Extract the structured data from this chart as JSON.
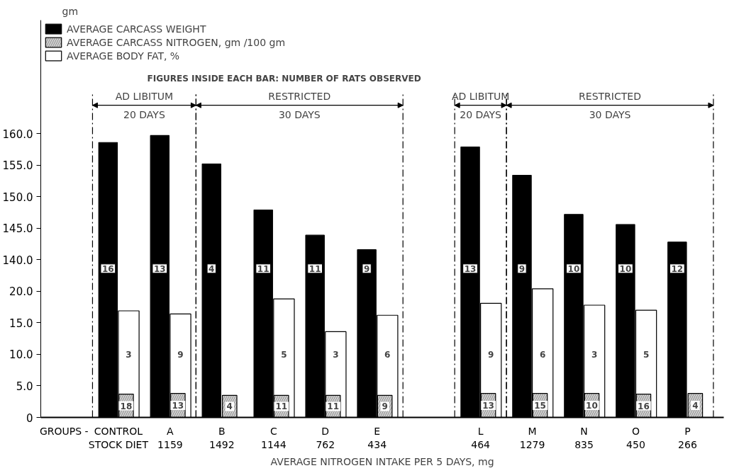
{
  "chart_data": {
    "type": "bar",
    "xlabel": "AVERAGE NITROGEN INTAKE PER 5 DAYS, mg",
    "ylabel": "gm",
    "categories": [
      "CONTROL\nSTOCK DIET",
      "A\n1159",
      "B\n1492",
      "C\n1144",
      "D\n762",
      "E\n434",
      null,
      "L\n464",
      "M\n1279",
      "N\n835",
      "O\n450",
      "P\n266"
    ],
    "series": [
      {
        "name": "AVERAGE CARCASS WEIGHT",
        "color": "#000000",
        "axis": "y2",
        "values": [
          158.6,
          159.7,
          155.2,
          147.9,
          143.9,
          141.6,
          null,
          157.9,
          153.4,
          147.2,
          145.6,
          142.8
        ]
      },
      {
        "name": "AVERAGE CARCASS NITROGEN, gm /100 gm",
        "color": "#d0d0d0",
        "values": [
          3.7,
          3.8,
          3.5,
          3.5,
          3.5,
          3.5,
          null,
          3.8,
          3.8,
          3.8,
          3.7,
          3.8
        ]
      },
      {
        "name": "AVERAGE BODY FAT, %",
        "color": "#ffffff",
        "values": [
          16.9,
          16.4,
          null,
          18.8,
          13.6,
          16.2,
          null,
          18.1,
          20.4,
          17.8,
          17.0,
          null
        ]
      }
    ],
    "ylim": [
      0,
      63
    ],
    "yticks": [
      0,
      {
        "value": 5,
        "label": "5.0"
      },
      {
        "value": 10,
        "label": "10.0"
      },
      {
        "value": 15,
        "label": "15.0"
      },
      {
        "value": 20,
        "label": "20.0"
      }
    ],
    "y2lim": [
      115,
      178
    ],
    "y2ticks": [
      {
        "value": 140,
        "label": "140.0"
      },
      {
        "value": 145,
        "label": "145.0"
      },
      {
        "value": 150,
        "label": "150.0"
      },
      {
        "value": 155,
        "label": "155.0"
      },
      {
        "value": 160,
        "label": "160.0"
      }
    ],
    "annotations": [
      "FIGURES INSIDE EACH BAR: NUMBER OF RATS OBSERVED",
      "AD LIBITUM",
      "20 DAYS",
      "RESTRICTED",
      "30 DAYS",
      "AD LIBITUM",
      "20 DAYS",
      "RESTRICTED",
      "30 DAYS",
      "GROUPS -",
      "16",
      "13",
      "4",
      "11",
      "11",
      "9",
      "13",
      "9",
      "10",
      "10",
      "12",
      "18",
      "13",
      "4",
      "11",
      "11",
      "9",
      "13",
      "15",
      "10",
      "16",
      "4",
      "3",
      "9",
      "5",
      "3",
      "6",
      "9",
      "6",
      "3",
      "5"
    ],
    "legend": "top left",
    "grid": false
  }
}
